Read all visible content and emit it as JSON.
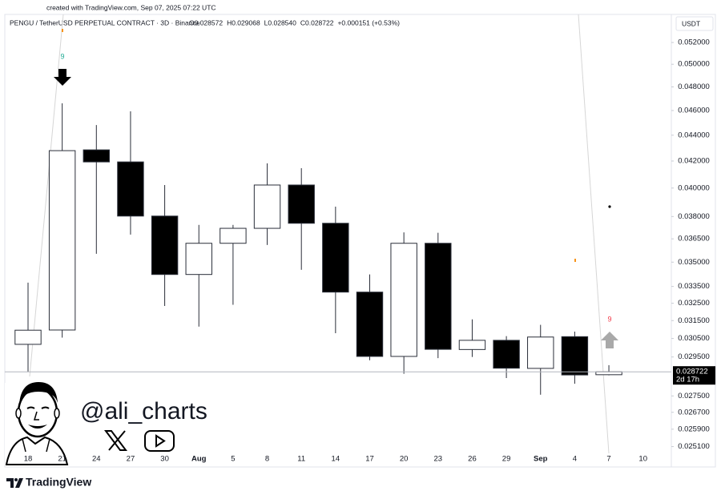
{
  "chart_data": {
    "type": "candlestick",
    "watermark": "created with TradingView.com, Sep 07, 2025 07:22 UTC",
    "symbol": "PENGU / TetherUSD PERPETUAL CONTRACT · 3D · Binance",
    "ohlc_header": [
      "O0.028572",
      "H0.029068",
      "L0.028540",
      "C0.028722",
      "+0.000151 (+0.53%)"
    ],
    "currency": "USDT",
    "categories": [
      "18",
      "21",
      "24",
      "27",
      "30",
      "Aug",
      "5",
      "8",
      "11",
      "14",
      "17",
      "20",
      "23",
      "26",
      "29",
      "Sep",
      "4",
      "7",
      "10"
    ],
    "open": [
      0.03018,
      0.03097,
      0.04285,
      0.04193,
      0.03803,
      0.03423,
      0.03621,
      0.0372,
      0.04022,
      0.03754,
      0.03316,
      0.02953,
      0.03621,
      0.0299,
      0.0304,
      0.0289,
      0.0306,
      0.028572,
      null
    ],
    "high": [
      0.03373,
      0.0466,
      0.04481,
      0.04593,
      0.04022,
      0.03743,
      0.03743,
      0.04182,
      0.04146,
      0.03868,
      0.03423,
      0.03693,
      0.0369,
      0.03157,
      0.03063,
      0.03126,
      0.03088,
      0.029068,
      null
    ],
    "low": [
      0.02871,
      0.03055,
      0.03553,
      0.03678,
      0.03234,
      0.03116,
      0.03241,
      0.0361,
      0.03452,
      0.03079,
      0.02933,
      0.02862,
      0.02944,
      0.0295,
      0.0284,
      0.02756,
      0.02811,
      0.02854,
      null
    ],
    "close": [
      0.03096,
      0.04279,
      0.04193,
      0.03803,
      0.03423,
      0.03621,
      0.0372,
      0.04022,
      0.03754,
      0.03316,
      0.02953,
      0.03621,
      0.02991,
      0.0304,
      0.02891,
      0.03058,
      0.02856,
      0.028722,
      null
    ],
    "up_color": "#ffffff",
    "down_color": "#000000",
    "log_scale": true,
    "ylim": [
      0.0243,
      0.0547
    ],
    "yticks": [
      {
        "value": 0.052,
        "label": "0.052000"
      },
      {
        "value": 0.05,
        "label": "0.050000"
      },
      {
        "value": 0.048,
        "label": "0.048000"
      },
      {
        "value": 0.046,
        "label": "0.046000"
      },
      {
        "value": 0.044,
        "label": "0.044000"
      },
      {
        "value": 0.042,
        "label": "0.042000"
      },
      {
        "value": 0.04,
        "label": "0.040000"
      },
      {
        "value": 0.038,
        "label": "0.038000"
      },
      {
        "value": 0.0365,
        "label": "0.036500"
      },
      {
        "value": 0.035,
        "label": "0.035000"
      },
      {
        "value": 0.0335,
        "label": "0.033500"
      },
      {
        "value": 0.0325,
        "label": "0.032500"
      },
      {
        "value": 0.0315,
        "label": "0.031500"
      },
      {
        "value": 0.0305,
        "label": "0.030500"
      },
      {
        "value": 0.0295,
        "label": "0.029500"
      },
      {
        "value": 0.0275,
        "label": "0.027500"
      },
      {
        "value": 0.0267,
        "label": "0.026700"
      },
      {
        "value": 0.0259,
        "label": "0.025900"
      },
      {
        "value": 0.0251,
        "label": "0.025100"
      }
    ],
    "grid": false,
    "last_price": {
      "value": 0.028722,
      "label": "0.028722",
      "countdown": "2d 17h"
    },
    "annotations": [
      "9",
      "9"
    ],
    "author": "@ali_charts",
    "brand": "TradingView"
  }
}
